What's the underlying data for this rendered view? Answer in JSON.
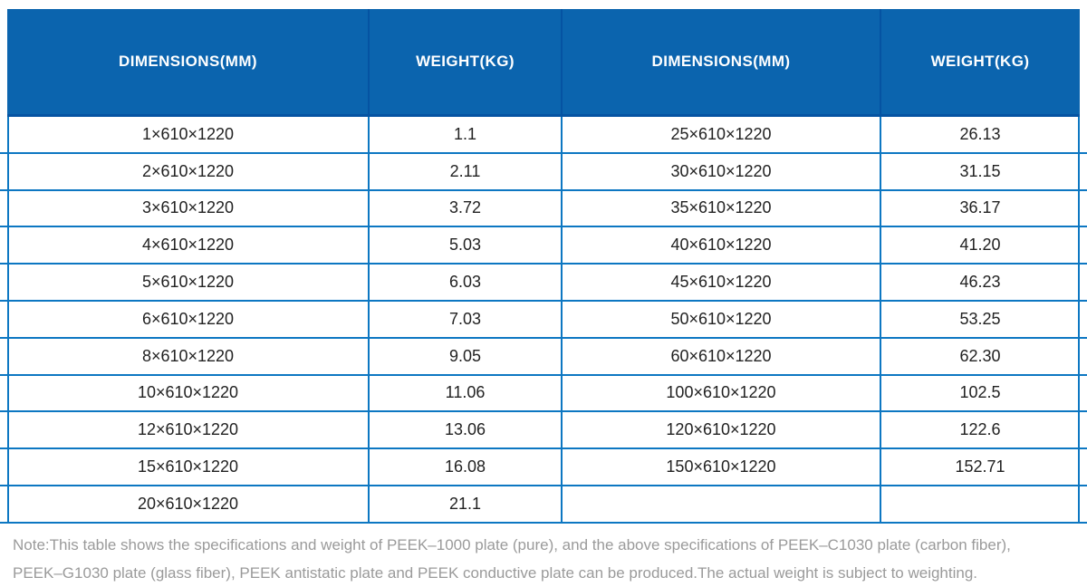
{
  "table": {
    "headers": [
      "DIMENSIONS(MM)",
      "WEIGHT(KG)",
      "DIMENSIONS(MM)",
      "WEIGHT(KG)"
    ],
    "rows": [
      [
        "1×610×1220",
        "1.1",
        "25×610×1220",
        "26.13"
      ],
      [
        "2×610×1220",
        "2.11",
        "30×610×1220",
        "31.15"
      ],
      [
        "3×610×1220",
        "3.72",
        "35×610×1220",
        "36.17"
      ],
      [
        "4×610×1220",
        "5.03",
        "40×610×1220",
        "41.20"
      ],
      [
        "5×610×1220",
        "6.03",
        "45×610×1220",
        "46.23"
      ],
      [
        "6×610×1220",
        "7.03",
        "50×610×1220",
        "53.25"
      ],
      [
        "8×610×1220",
        "9.05",
        "60×610×1220",
        "62.30"
      ],
      [
        "10×610×1220",
        "11.06",
        "100×610×1220",
        "102.5"
      ],
      [
        "12×610×1220",
        "13.06",
        "120×610×1220",
        "122.6"
      ],
      [
        "15×610×1220",
        "16.08",
        "150×610×1220",
        "152.71"
      ],
      [
        "20×610×1220",
        "21.1",
        "",
        ""
      ]
    ]
  },
  "note": {
    "line1": "Note:This table shows the specifications and weight of PEEK–1000 plate (pure), and the above specifications of PEEK–C1030 plate (carbon fiber),",
    "line2": "PEEK–G1030 plate (glass fiber), PEEK antistatic plate and PEEK conductive plate can be produced.The actual weight is subject to weighting."
  },
  "colors": {
    "header_bg": "#0b64ae",
    "header_divider": "#0553a2",
    "grid_line": "#0d77c2",
    "cell_text": "#222222",
    "note_text": "#9a9a9a"
  }
}
